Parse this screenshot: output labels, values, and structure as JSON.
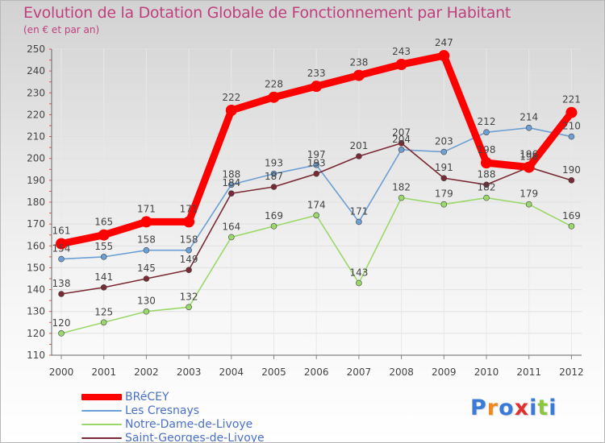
{
  "header": {
    "title": "Evolution de la Dotation Globale de Fonctionnement par Habitant",
    "subtitle": "(en € et par an)"
  },
  "chart_data": {
    "type": "line",
    "title": "Evolution de la Dotation Globale de Fonctionnement par Habitant",
    "subtitle": "(en € et par an)",
    "xlabel": "",
    "ylabel": "",
    "x": [
      "2000",
      "2001",
      "2002",
      "2003",
      "2004",
      "2005",
      "2006",
      "2007",
      "2008",
      "2009",
      "2010",
      "2011",
      "2012"
    ],
    "ylim": [
      110,
      250
    ],
    "yticks": [
      "110",
      "120",
      "130",
      "140",
      "150",
      "160",
      "170",
      "180",
      "190",
      "200",
      "210",
      "220",
      "230",
      "240",
      "250"
    ],
    "grid": true,
    "legend_position": "bottom-left",
    "series": [
      {
        "name": "BRéCEY",
        "color": "#ff0000",
        "emphasis": true,
        "values": [
          161,
          165,
          171,
          171,
          222,
          228,
          233,
          238,
          243,
          247,
          198,
          196,
          221
        ]
      },
      {
        "name": "Les Cresnays",
        "color": "#6c9fd3",
        "values": [
          154,
          155,
          158,
          158,
          188,
          193,
          197,
          171,
          204,
          203,
          212,
          214,
          210
        ]
      },
      {
        "name": "Notre-Dame-de-Livoye",
        "color": "#9bd86b",
        "values": [
          120,
          125,
          130,
          132,
          164,
          169,
          174,
          143,
          182,
          179,
          182,
          179,
          169
        ]
      },
      {
        "name": "Saint-Georges-de-Livoye",
        "color": "#7a2a34",
        "values": [
          138,
          141,
          145,
          149,
          184,
          187,
          193,
          201,
          207,
          191,
          188,
          196,
          190
        ]
      }
    ]
  },
  "legend": {
    "items": [
      {
        "label": "BRéCEY",
        "color": "#ff0000"
      },
      {
        "label": "Les Cresnays",
        "color": "#6c9fd3"
      },
      {
        "label": "Notre-Dame-de-Livoye",
        "color": "#9bd86b"
      },
      {
        "label": "Saint-Georges-de-Livoye",
        "color": "#7a2a34"
      }
    ]
  },
  "logo": {
    "text": "Proxiti",
    "letter_colors": [
      "#3a7ad8",
      "#f08a1c",
      "#3a7ad8",
      "#e03030",
      "#3a7ad8",
      "#8bc63f",
      "#3a7ad8"
    ]
  }
}
